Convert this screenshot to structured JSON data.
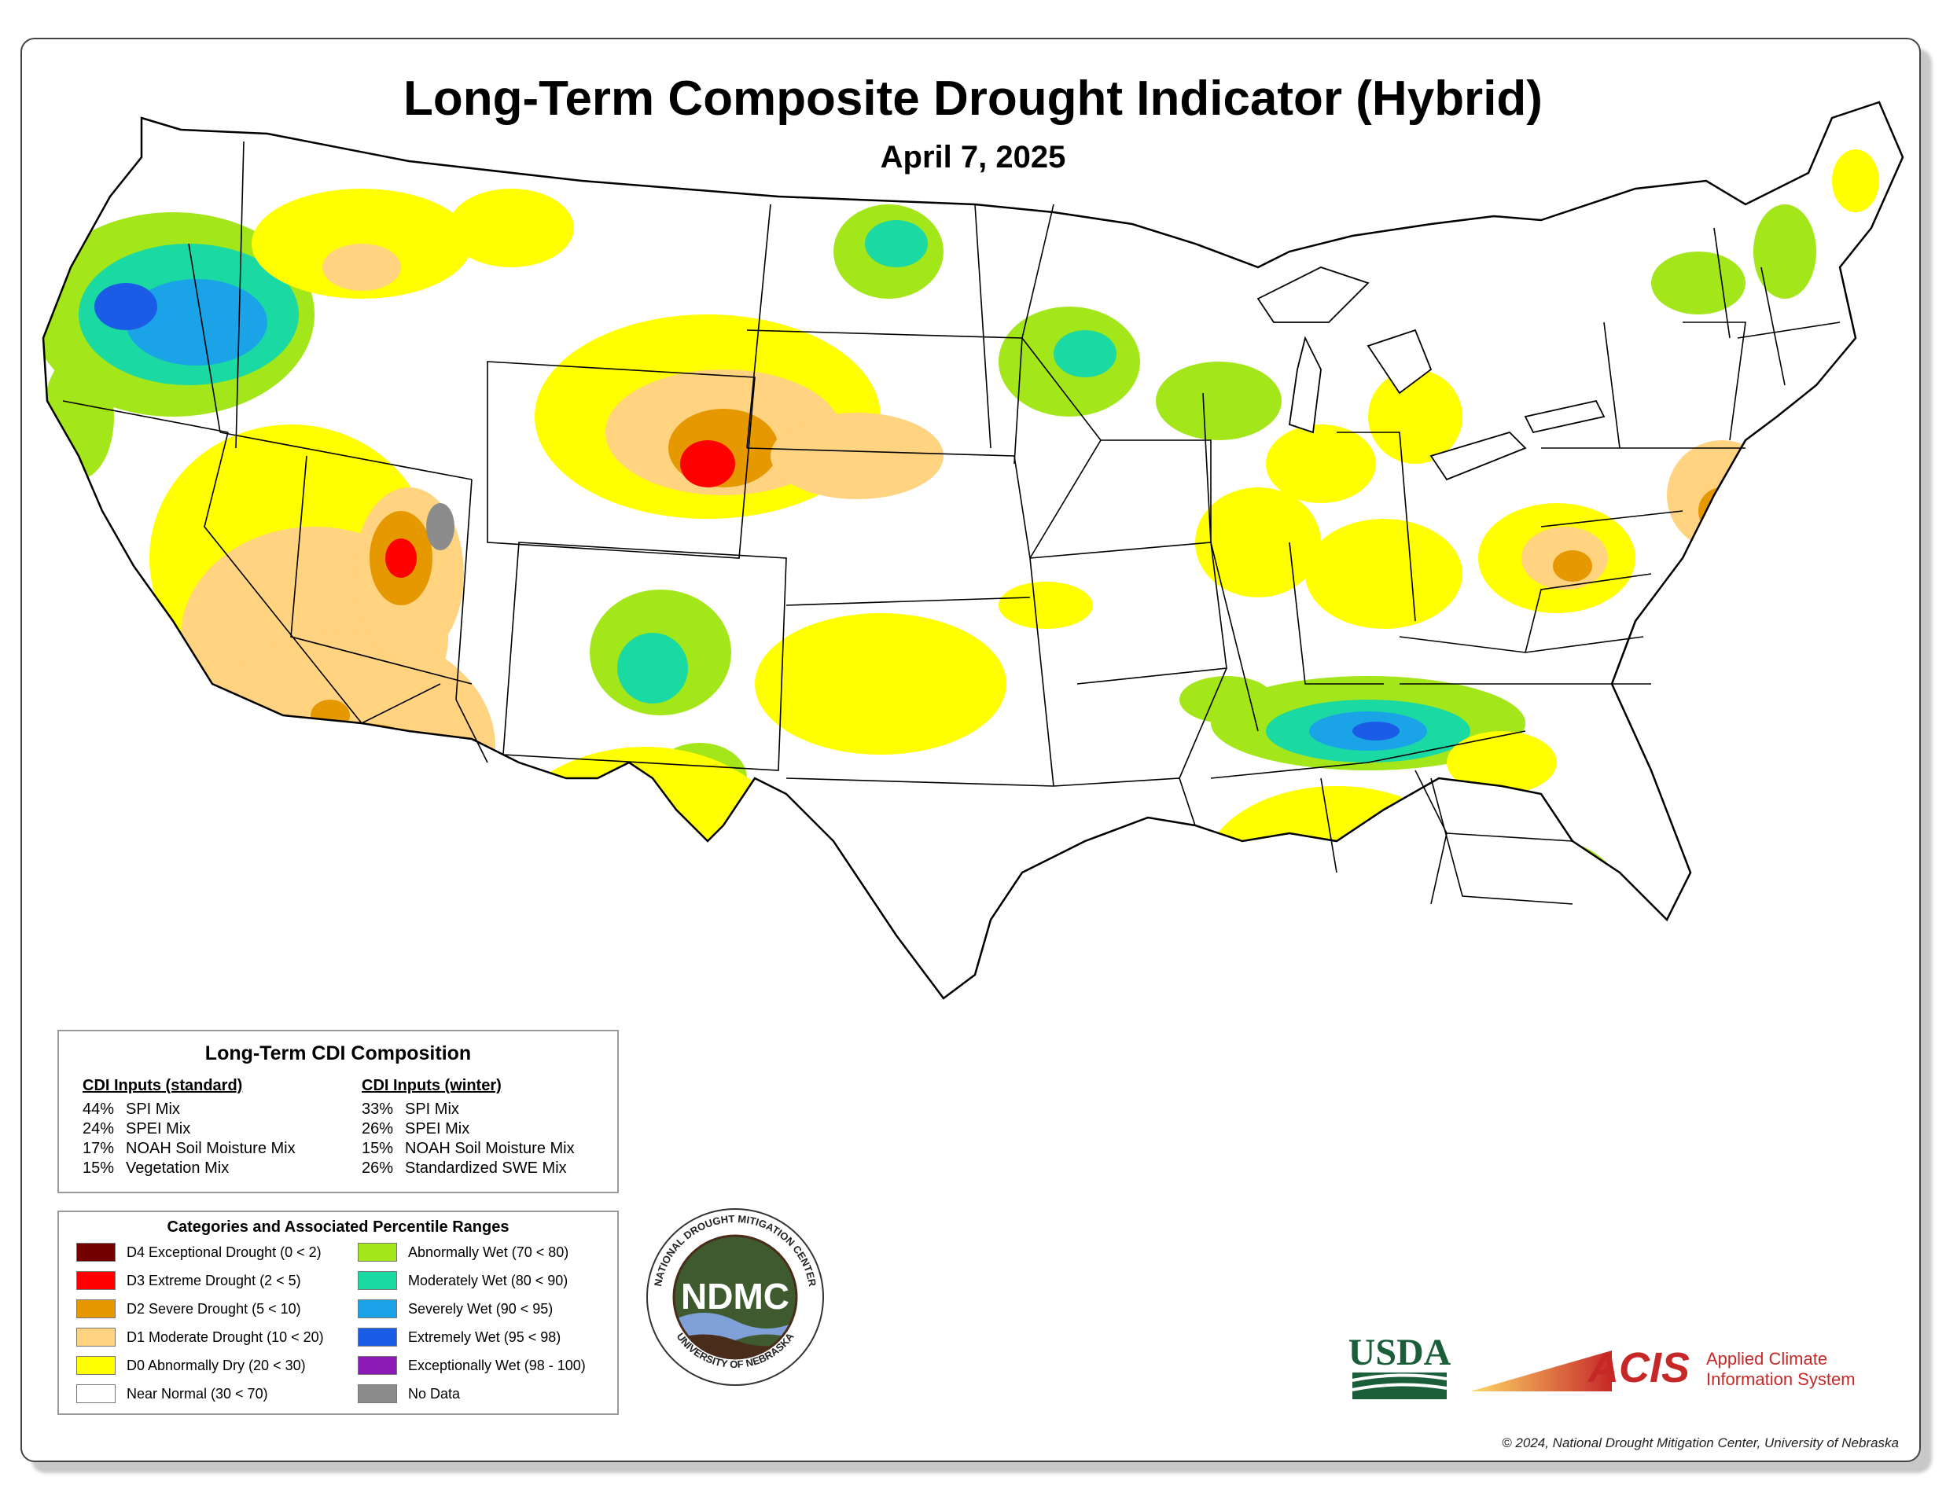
{
  "title": "Long-Term Composite Drought Indicator (Hybrid)",
  "date": "April 7, 2025",
  "composition": {
    "title": "Long-Term CDI Composition",
    "standard": {
      "heading": "CDI Inputs (standard)",
      "rows": [
        {
          "pct": "44%",
          "label": "SPI Mix"
        },
        {
          "pct": "24%",
          "label": "SPEI Mix"
        },
        {
          "pct": "17%",
          "label": "NOAH Soil Moisture Mix"
        },
        {
          "pct": "15%",
          "label": "Vegetation Mix"
        }
      ]
    },
    "winter": {
      "heading": "CDI Inputs (winter)",
      "rows": [
        {
          "pct": "33%",
          "label": "SPI Mix"
        },
        {
          "pct": "26%",
          "label": "SPEI Mix"
        },
        {
          "pct": "15%",
          "label": "NOAH Soil Moisture Mix"
        },
        {
          "pct": "26%",
          "label": "Standardized SWE Mix"
        }
      ]
    }
  },
  "categories": {
    "title": "Categories and Associated Percentile Ranges",
    "items": [
      {
        "label": "D4 Exceptional Drought (0 < 2)",
        "color": "#730000"
      },
      {
        "label": "D3 Extreme Drought (2 < 5)",
        "color": "#ff0000"
      },
      {
        "label": "D2 Severe Drought (5 < 10)",
        "color": "#e69800"
      },
      {
        "label": "D1 Moderate Drought (10 < 20)",
        "color": "#ffd37f"
      },
      {
        "label": "D0 Abnormally Dry (20 < 30)",
        "color": "#ffff00"
      },
      {
        "label": "Near Normal (30 < 70)",
        "color": "#ffffff"
      },
      {
        "label": "Abnormally Wet (70 < 80)",
        "color": "#a3e61a"
      },
      {
        "label": "Moderately Wet (80 < 90)",
        "color": "#1ad9a3"
      },
      {
        "label": "Severely Wet (90 < 95)",
        "color": "#1aa3e6"
      },
      {
        "label": "Extremely Wet (95 < 98)",
        "color": "#1a5ce6"
      },
      {
        "label": "Exceptionally Wet (98 - 100)",
        "color": "#8c1ab4"
      },
      {
        "label": "No Data",
        "color": "#8c8c8c"
      }
    ]
  },
  "logos": {
    "ndmc_text": "NDMC",
    "ndmc_ring_top": "NATIONAL DROUGHT MITIGATION CENTER",
    "ndmc_ring_bottom": "UNIVERSITY OF NEBRASKA",
    "usda_text": "USDA",
    "acis_text": "ACIS",
    "acis_line1": "Applied Climate",
    "acis_line2": "Information System"
  },
  "copyright": "© 2024, National Drought Mitigation Center, University of Nebraska"
}
